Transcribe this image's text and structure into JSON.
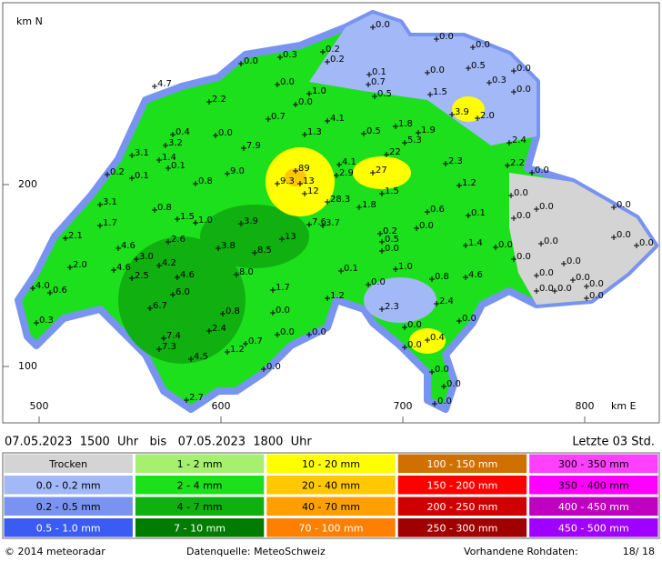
{
  "map": {
    "north_label": "km N",
    "east_label": "km E",
    "yticks": [
      200,
      100
    ],
    "xticks": [
      500,
      600,
      700,
      800
    ],
    "stations": [
      "0.0",
      "0.0",
      "0.0",
      "0.3",
      "0.2",
      "0.2",
      "0.0",
      "0.0",
      "0.0",
      "0.5",
      "0.3",
      "0.1",
      "0.0",
      "4.7",
      "0.0",
      "0.7",
      "1.0",
      "1.5",
      "0.5",
      "2.2",
      "0.0",
      "0.7",
      "3.9",
      "2.0",
      "4.1",
      "0.4",
      "0.0",
      "1.3",
      "0.5",
      "1.8",
      "1.9",
      "3.2",
      "7.9",
      "5.3",
      "2.4",
      "3.1",
      "1.4",
      "22",
      "0.1",
      "89",
      "4.1",
      "27",
      "2.3",
      "2.2",
      "0.2",
      "9.0",
      "0.1",
      "2.9",
      "0.0",
      "9.3",
      "13",
      "0.8",
      "1.2",
      "12",
      "1.5",
      "0.0",
      "3.1",
      "28.3",
      "0.8",
      "1.8",
      "0.1",
      "0.0",
      "1.5",
      "1.0",
      "3.9",
      "7.6",
      "3.7",
      "0.6",
      "0.0",
      "0.0",
      "1.7",
      "0.2",
      "0.0",
      "2.1",
      "2.6",
      "13",
      "0.5",
      "0.0",
      "0.0",
      "1.4",
      "0.0",
      "0.0",
      "0.0",
      "4.6",
      "3.8",
      "8.5",
      "3.0",
      "0.0",
      "0.0",
      "2.0",
      "4.6",
      "4.2",
      "0.1",
      "1.0",
      "4.6",
      "2.5",
      "8.0",
      "0.8",
      "4.6",
      "0.0",
      "0.0",
      "4.0",
      "0.6",
      "1.7",
      "0.0",
      "0.0",
      "0.0",
      "0.0",
      "6.0",
      "1.2",
      "0.0",
      "2.4",
      "6.7",
      "2.3",
      "0.8",
      "0.0",
      "0.0",
      "0.3",
      "0.0",
      "2.4",
      "0.0",
      "0.0",
      "7.4",
      "0.4",
      "0.0",
      "0.7",
      "7.3",
      "1.2",
      "4.5",
      "0.0",
      "0.0",
      "0.0",
      "2.7",
      "0.0"
    ]
  },
  "period": "07.05.2023  1500  Uhr   bis   07.05.2023  1800  Uhr",
  "last": "Letzte 03 Std.",
  "legend": [
    {
      "label": "Trocken",
      "color": "#d4d4d4"
    },
    {
      "label": "0.0 - 0.2 mm",
      "color": "#a3b8f7"
    },
    {
      "label": "0.2 - 0.5 mm",
      "color": "#7993f0"
    },
    {
      "label": "0.5 - 1.0 mm",
      "color": "#3a5cf2"
    },
    {
      "label": "1 - 2 mm",
      "color": "#a6f070"
    },
    {
      "label": "2 - 4 mm",
      "color": "#1de01d"
    },
    {
      "label": "4 - 7 mm",
      "color": "#10b010"
    },
    {
      "label": "7 - 10 mm",
      "color": "#007d00"
    },
    {
      "label": "10 - 20 mm",
      "color": "#ffff00"
    },
    {
      "label": "20 - 40 mm",
      "color": "#ffc800"
    },
    {
      "label": "40 - 70 mm",
      "color": "#ffa000"
    },
    {
      "label": "70 - 100 mm",
      "color": "#ff8000"
    },
    {
      "label": "100 - 150 mm",
      "color": "#d07000"
    },
    {
      "label": "150 - 200 mm",
      "color": "#ff0000"
    },
    {
      "label": "200 - 250 mm",
      "color": "#d00000"
    },
    {
      "label": "250 - 300 mm",
      "color": "#a00000"
    },
    {
      "label": "300 - 350 mm",
      "color": "#ff40ff"
    },
    {
      "label": "350 - 400 mm",
      "color": "#ff00ff"
    },
    {
      "label": "400 - 450 mm",
      "color": "#c000c0"
    },
    {
      "label": "450 - 500 mm",
      "color": "#a000ff"
    }
  ],
  "footer": {
    "copyright": "© 2014  meteoradar",
    "source": "Datenquelle: MeteoSchweiz",
    "raw_label": "Vorhandene Rohdaten:",
    "raw_value": "18/ 18"
  }
}
